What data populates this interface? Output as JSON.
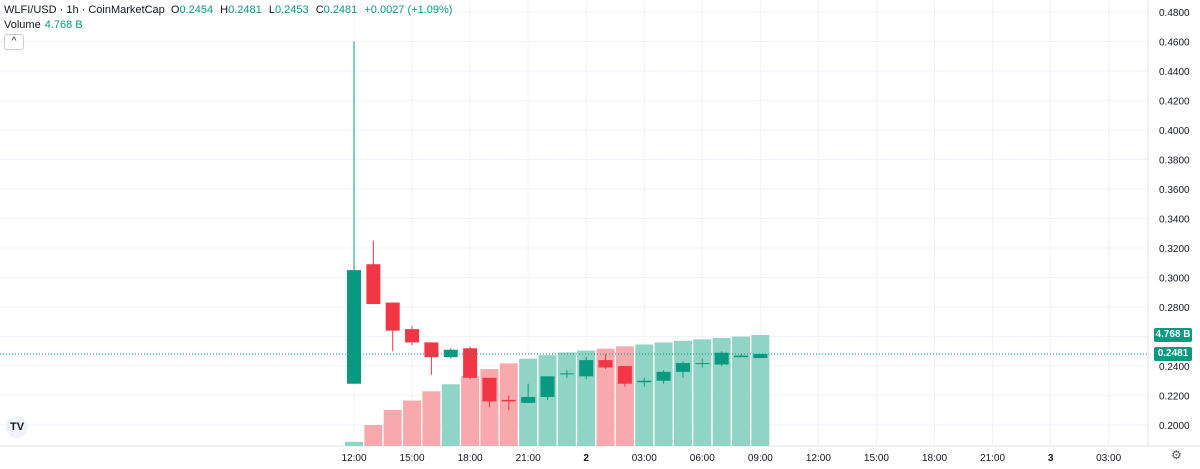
{
  "legend": {
    "symbol": "WLFI/USD · 1h · CoinMarketCap",
    "o_label": "O",
    "o": "0.2454",
    "h_label": "H",
    "h": "0.2481",
    "l_label": "L",
    "l": "0.2453",
    "c_label": "C",
    "c": "0.2481",
    "change": "+0.0027 (+1.09%)"
  },
  "volume_legend": {
    "label": "Volume",
    "value": "4.768 B"
  },
  "collapse_glyph": "^",
  "logo_text": "TV",
  "gear_glyph": "⚙",
  "colors": {
    "up": "#089981",
    "down": "#f23645",
    "vol_up": "#8fd4c4",
    "vol_down": "#f7a9ae",
    "grid": "#f0f3fa"
  },
  "price_tag": "0.2481",
  "volume_tag": "4.768 B",
  "chart_data": {
    "type": "candlestick",
    "y_axis": {
      "range": [
        0.18,
        0.49
      ],
      "ticks": [
        "0.4800",
        "0.4600",
        "0.4400",
        "0.4200",
        "0.4000",
        "0.3800",
        "0.3600",
        "0.3400",
        "0.3200",
        "0.3000",
        "0.2800",
        "0.2600",
        "0.2400",
        "0.2200",
        "0.2000"
      ]
    },
    "x_axis": {
      "ticks": [
        {
          "label": "12:00",
          "hour": 0
        },
        {
          "label": "15:00",
          "hour": 3
        },
        {
          "label": "18:00",
          "hour": 6
        },
        {
          "label": "21:00",
          "hour": 9
        },
        {
          "label": "2",
          "hour": 12
        },
        {
          "label": "03:00",
          "hour": 15
        },
        {
          "label": "06:00",
          "hour": 18
        },
        {
          "label": "09:00",
          "hour": 21
        },
        {
          "label": "12:00",
          "hour": 24
        },
        {
          "label": "15:00",
          "hour": 27
        },
        {
          "label": "18:00",
          "hour": 30
        },
        {
          "label": "21:00",
          "hour": 33
        },
        {
          "label": "3",
          "hour": 36
        },
        {
          "label": "03:00",
          "hour": 39
        }
      ]
    },
    "candles": [
      {
        "o": 0.228,
        "h": 0.46,
        "l": 0.228,
        "c": 0.305
      },
      {
        "o": 0.309,
        "h": 0.325,
        "l": 0.282,
        "c": 0.282
      },
      {
        "o": 0.283,
        "h": 0.283,
        "l": 0.25,
        "c": 0.264
      },
      {
        "o": 0.265,
        "h": 0.267,
        "l": 0.254,
        "c": 0.256
      },
      {
        "o": 0.256,
        "h": 0.256,
        "l": 0.234,
        "c": 0.246
      },
      {
        "o": 0.246,
        "h": 0.252,
        "l": 0.245,
        "c": 0.251
      },
      {
        "o": 0.252,
        "h": 0.253,
        "l": 0.231,
        "c": 0.232
      },
      {
        "o": 0.232,
        "h": 0.232,
        "l": 0.212,
        "c": 0.216
      },
      {
        "o": 0.217,
        "h": 0.22,
        "l": 0.21,
        "c": 0.216
      },
      {
        "o": 0.215,
        "h": 0.228,
        "l": 0.215,
        "c": 0.219
      },
      {
        "o": 0.219,
        "h": 0.233,
        "l": 0.217,
        "c": 0.233
      },
      {
        "o": 0.235,
        "h": 0.237,
        "l": 0.232,
        "c": 0.235
      },
      {
        "o": 0.233,
        "h": 0.246,
        "l": 0.231,
        "c": 0.244
      },
      {
        "o": 0.244,
        "h": 0.248,
        "l": 0.238,
        "c": 0.239
      },
      {
        "o": 0.24,
        "h": 0.24,
        "l": 0.226,
        "c": 0.228
      },
      {
        "o": 0.229,
        "h": 0.232,
        "l": 0.226,
        "c": 0.23
      },
      {
        "o": 0.23,
        "h": 0.237,
        "l": 0.228,
        "c": 0.236
      },
      {
        "o": 0.236,
        "h": 0.243,
        "l": 0.232,
        "c": 0.242
      },
      {
        "o": 0.242,
        "h": 0.245,
        "l": 0.239,
        "c": 0.242
      },
      {
        "o": 0.241,
        "h": 0.25,
        "l": 0.24,
        "c": 0.249
      },
      {
        "o": 0.246,
        "h": 0.248,
        "l": 0.246,
        "c": 0.247
      },
      {
        "o": 0.2454,
        "h": 0.2481,
        "l": 0.2453,
        "c": 0.2481
      }
    ],
    "volume": {
      "unit": "B",
      "values": [
        0.18,
        0.9,
        1.55,
        1.95,
        2.35,
        2.65,
        3.0,
        3.3,
        3.55,
        3.75,
        3.9,
        4.02,
        4.1,
        4.18,
        4.28,
        4.36,
        4.45,
        4.52,
        4.58,
        4.64,
        4.7,
        4.768
      ],
      "directions": [
        "up",
        "down",
        "down",
        "down",
        "down",
        "up",
        "down",
        "down",
        "down",
        "up",
        "up",
        "up",
        "up",
        "down",
        "down",
        "up",
        "up",
        "up",
        "up",
        "up",
        "up",
        "up"
      ]
    },
    "last_price": 0.2481
  }
}
